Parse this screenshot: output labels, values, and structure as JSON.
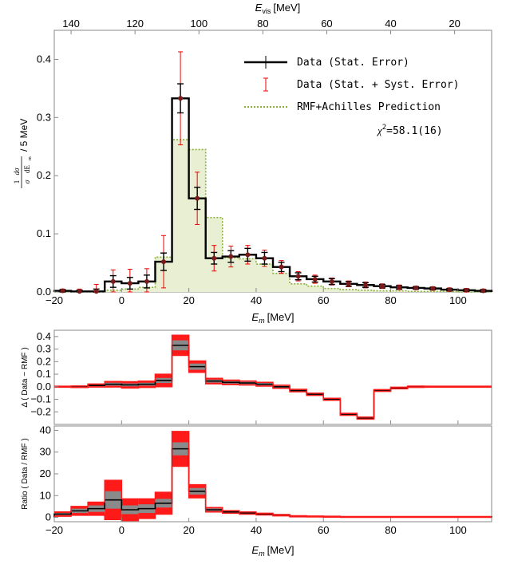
{
  "chart_data": [
    {
      "type": "histogram",
      "name": "main-panel",
      "ylabel_frac_num": "1",
      "ylabel_frac_num_expr": "dσ",
      "ylabel_frac_den": "σ",
      "ylabel_frac_den_expr": "dE",
      "ylabel_den_sub": "m",
      "ylabel_suffix": "/ 5 MeV",
      "xlabel": "E",
      "xlabel_sub": "m",
      "xlabel_unit": "[MeV]",
      "top_axis_label": "E",
      "top_axis_sub": "vis",
      "top_axis_unit": "[MeV]",
      "xlim": [
        -20,
        110
      ],
      "ylim": [
        0,
        0.45
      ],
      "x_ticks": [
        "−20",
        "0",
        "20",
        "40",
        "60",
        "80",
        "100"
      ],
      "x_tick_values": [
        -20,
        0,
        20,
        40,
        60,
        80,
        100
      ],
      "y_ticks": [
        "0.0",
        "0.1",
        "0.2",
        "0.3",
        "0.4"
      ],
      "y_tick_values": [
        0,
        0.1,
        0.2,
        0.3,
        0.4
      ],
      "top_ticks": [
        "140",
        "120",
        "100",
        "80",
        "60",
        "40",
        "20"
      ],
      "top_tick_positions_em": [
        -15,
        4,
        23,
        42,
        61,
        80,
        99
      ],
      "legend": {
        "data_stat": "Data (Stat. Error)",
        "data_syst": "Data (Stat. + Syst. Error)",
        "prediction": "RMF+Achilles Prediction",
        "chi2_prefix": "χ",
        "chi2_power": "2",
        "chi2_value": "=58.1(16)"
      },
      "bin_edges": [
        -20,
        -15,
        -10,
        -5,
        0,
        5,
        10,
        15,
        20,
        25,
        30,
        35,
        40,
        45,
        50,
        55,
        60,
        65,
        70,
        75,
        80,
        85,
        90,
        95,
        100,
        105,
        110
      ],
      "data_values": [
        0.002,
        0.001,
        0.001,
        0.018,
        0.015,
        0.018,
        0.052,
        0.333,
        0.161,
        0.058,
        0.061,
        0.064,
        0.058,
        0.043,
        0.027,
        0.022,
        0.018,
        0.014,
        0.012,
        0.01,
        0.008,
        0.007,
        0.006,
        0.004,
        0.003,
        0.002
      ],
      "stat_errors": [
        0.002,
        0.002,
        0.004,
        0.01,
        0.01,
        0.011,
        0.015,
        0.025,
        0.019,
        0.01,
        0.01,
        0.011,
        0.01,
        0.008,
        0.006,
        0.005,
        0.005,
        0.004,
        0.004,
        0.003,
        0.003,
        0.002,
        0.002,
        0.002,
        0.002,
        0.002
      ],
      "syst_errors": [
        0.003,
        0.004,
        0.012,
        0.02,
        0.024,
        0.022,
        0.045,
        0.08,
        0.045,
        0.022,
        0.018,
        0.016,
        0.014,
        0.011,
        0.008,
        0.007,
        0.006,
        0.005,
        0.005,
        0.004,
        0.004,
        0.003,
        0.003,
        0.003,
        0.003,
        0.003
      ],
      "prediction_values": [
        0.0,
        0.0,
        0.0,
        0.003,
        0.005,
        0.008,
        0.06,
        0.262,
        0.245,
        0.128,
        0.059,
        0.057,
        0.048,
        0.032,
        0.014,
        0.01,
        0.006,
        0.004,
        0.003,
        0.002,
        0.002,
        0.001,
        0.001,
        0.001,
        0.0,
        0.0
      ]
    },
    {
      "type": "histogram",
      "name": "difference-panel",
      "ylabel": "Δ ( Data − RMF )",
      "xlim": [
        -20,
        110
      ],
      "ylim": [
        -0.3,
        0.45
      ],
      "y_ticks": [
        "0.4",
        "0.3",
        "0.2",
        "0.1",
        "0.0",
        "−0.1",
        "−0.2"
      ],
      "y_tick_values": [
        0.4,
        0.3,
        0.2,
        0.1,
        0.0,
        -0.1,
        -0.2
      ],
      "values": [
        0.0,
        0.0,
        0.01,
        0.02,
        0.015,
        0.02,
        0.05,
        0.33,
        0.16,
        0.045,
        0.035,
        0.03,
        0.02,
        0.0,
        -0.03,
        -0.06,
        -0.1,
        -0.22,
        -0.25,
        -0.03,
        -0.01,
        0.0,
        0.0,
        0.0,
        0.0,
        0.0
      ],
      "stat_band": [
        0.002,
        0.003,
        0.006,
        0.012,
        0.012,
        0.012,
        0.02,
        0.04,
        0.025,
        0.012,
        0.01,
        0.01,
        0.01,
        0.008,
        0.006,
        0.006,
        0.005,
        0.005,
        0.005,
        0.004,
        0.003,
        0.003,
        0.002,
        0.002,
        0.002,
        0.002
      ],
      "syst_band": [
        0.004,
        0.006,
        0.012,
        0.022,
        0.025,
        0.025,
        0.05,
        0.08,
        0.045,
        0.022,
        0.018,
        0.016,
        0.015,
        0.012,
        0.01,
        0.009,
        0.008,
        0.008,
        0.008,
        0.007,
        0.006,
        0.005,
        0.004,
        0.004,
        0.004,
        0.004
      ]
    },
    {
      "type": "histogram",
      "name": "ratio-panel",
      "ylabel": "Ratio ( Data / RMF )",
      "xlabel": "E",
      "xlabel_sub": "m",
      "xlabel_unit": "[MeV]",
      "xlim": [
        -20,
        110
      ],
      "ylim": [
        -2,
        42
      ],
      "x_ticks": [
        "−20",
        "0",
        "20",
        "40",
        "60",
        "80",
        "100"
      ],
      "x_tick_values": [
        -20,
        0,
        20,
        40,
        60,
        80,
        100
      ],
      "y_ticks": [
        "0",
        "10",
        "20",
        "30",
        "40"
      ],
      "y_tick_values": [
        0,
        10,
        20,
        30,
        40
      ],
      "values": [
        1.5,
        3.0,
        4.0,
        8.0,
        3.5,
        4.0,
        6.5,
        31.5,
        12.0,
        3.5,
        2.5,
        2.0,
        1.5,
        1.0,
        0.5,
        0.4,
        0.3,
        0.2,
        0.2,
        0.2,
        0.2,
        0.2,
        0.2,
        0.2,
        0.2,
        0.2
      ],
      "stat_band": [
        0.5,
        1.0,
        1.5,
        4.0,
        2.0,
        2.0,
        2.0,
        3.0,
        1.5,
        0.6,
        0.4,
        0.3,
        0.3,
        0.2,
        0.15,
        0.1,
        0.1,
        0.1,
        0.1,
        0.1,
        0.1,
        0.1,
        0.1,
        0.1,
        0.1,
        0.1
      ],
      "syst_band": [
        1.0,
        2.0,
        3.0,
        9.0,
        5.0,
        4.5,
        5.0,
        8.0,
        3.0,
        1.0,
        0.6,
        0.5,
        0.4,
        0.3,
        0.25,
        0.2,
        0.2,
        0.2,
        0.2,
        0.2,
        0.2,
        0.2,
        0.2,
        0.2,
        0.2,
        0.2
      ]
    }
  ]
}
